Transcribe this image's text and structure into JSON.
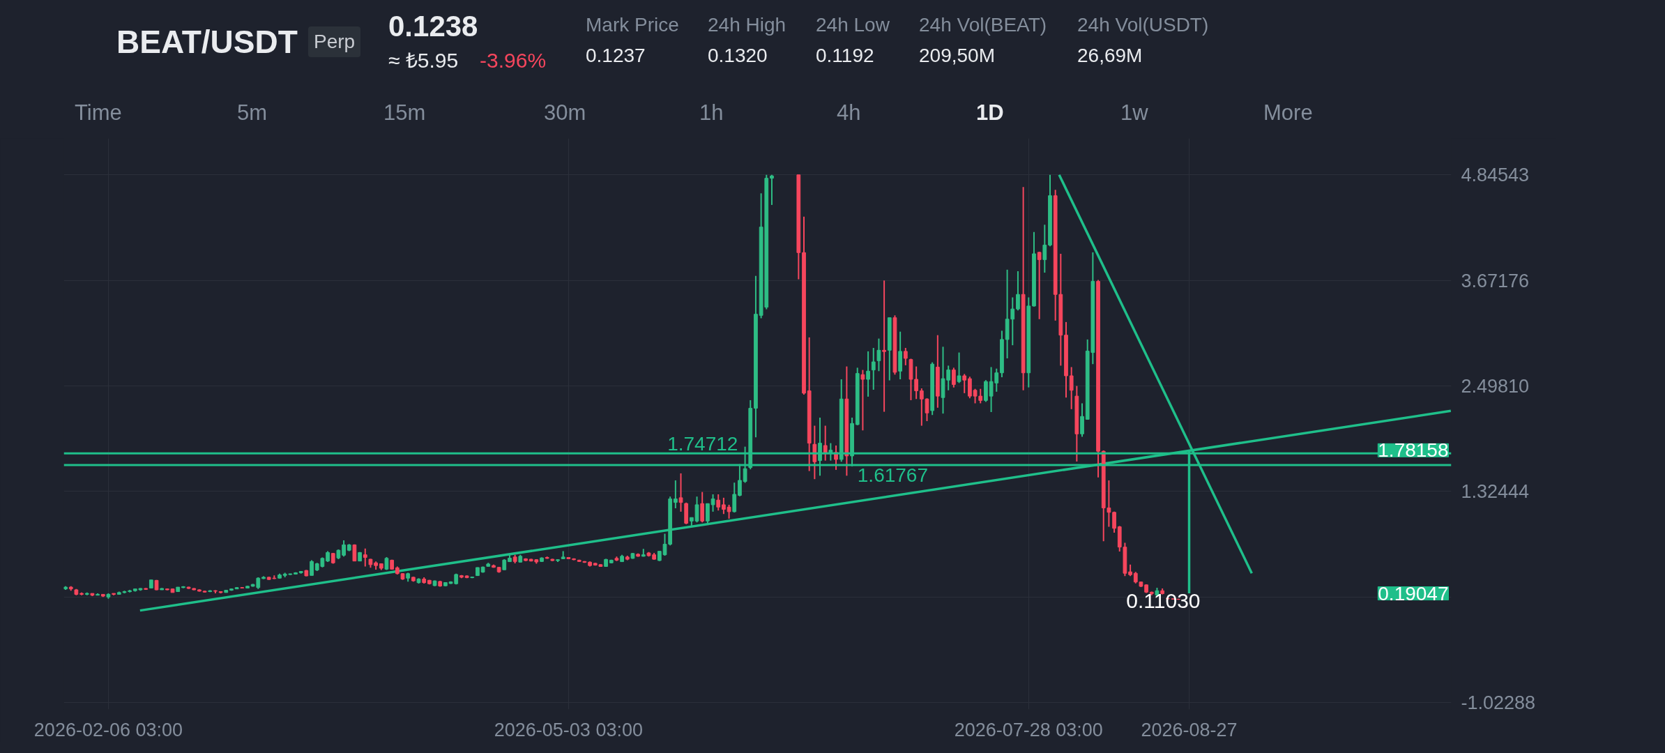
{
  "chart_data": {
    "type": "candlestick",
    "title": "BEAT/USDT",
    "subtitle": "Perp",
    "annotations": [
      "0.1238",
      "≈ ₺5.95",
      "-3.96%",
      "Mark Price",
      "0.1237",
      "24h High",
      "0.1320",
      "24h Low",
      "0.1192",
      "24h Vol(BEAT)",
      "209,50M",
      "24h Vol(USDT)",
      "26,69M",
      "Time",
      "5m",
      "15m",
      "30m",
      "1h",
      "4h",
      "1D",
      "1w",
      "More",
      "0.11030",
      "1.78158",
      "0.19047"
    ],
    "x": [
      "2026-01-29",
      "2026-01-30",
      "2026-01-31",
      "2026-02-01",
      "2026-02-02",
      "2026-02-03",
      "2026-02-04",
      "2026-02-05",
      "2026-02-06",
      "2026-02-07",
      "2026-02-08",
      "2026-02-09",
      "2026-02-10",
      "2026-02-11",
      "2026-02-12",
      "2026-02-13",
      "2026-02-14",
      "2026-02-15",
      "2026-02-16",
      "2026-02-17",
      "2026-02-18",
      "2026-02-19",
      "2026-02-20",
      "2026-02-21",
      "2026-02-22",
      "2026-02-23",
      "2026-02-24",
      "2026-02-25",
      "2026-02-26",
      "2026-02-27",
      "2026-02-28",
      "2026-03-01",
      "2026-03-02",
      "2026-03-03",
      "2026-03-04",
      "2026-03-05",
      "2026-03-06",
      "2026-03-07",
      "2026-03-08",
      "2026-03-09",
      "2026-03-10",
      "2026-03-11",
      "2026-03-12",
      "2026-03-13",
      "2026-03-14",
      "2026-03-15",
      "2026-03-16",
      "2026-03-17",
      "2026-03-18",
      "2026-03-19",
      "2026-03-20",
      "2026-03-21",
      "2026-03-22",
      "2026-03-23",
      "2026-03-24",
      "2026-03-25",
      "2026-03-26",
      "2026-03-27",
      "2026-03-28",
      "2026-03-29",
      "2026-03-30",
      "2026-03-31",
      "2026-04-01",
      "2026-04-02",
      "2026-04-03",
      "2026-04-04",
      "2026-04-05",
      "2026-04-06",
      "2026-04-07",
      "2026-04-08",
      "2026-04-09",
      "2026-04-10",
      "2026-04-11",
      "2026-04-12",
      "2026-04-13",
      "2026-04-14",
      "2026-04-15",
      "2026-04-16",
      "2026-04-17",
      "2026-04-18",
      "2026-04-19",
      "2026-04-20",
      "2026-04-21",
      "2026-04-22",
      "2026-04-23",
      "2026-04-24",
      "2026-04-25",
      "2026-04-26",
      "2026-04-27",
      "2026-04-28",
      "2026-04-29",
      "2026-04-30",
      "2026-05-01",
      "2026-05-02",
      "2026-05-03",
      "2026-05-04",
      "2026-05-05",
      "2026-05-06",
      "2026-05-07",
      "2026-05-08",
      "2026-05-09",
      "2026-05-10",
      "2026-05-11",
      "2026-05-12",
      "2026-05-13",
      "2026-05-14",
      "2026-05-15",
      "2026-05-16",
      "2026-05-17",
      "2026-05-18",
      "2026-05-19",
      "2026-05-20",
      "2026-05-21",
      "2026-05-22",
      "2026-05-23",
      "2026-05-24",
      "2026-05-25",
      "2026-05-26",
      "2026-05-27",
      "2026-05-28",
      "2026-05-29",
      "2026-05-30",
      "2026-05-31",
      "2026-06-01",
      "2026-06-02",
      "2026-06-03",
      "2026-06-04",
      "2026-06-05",
      "2026-06-06",
      "2026-06-07",
      "2026-06-08",
      "2026-06-09",
      "2026-06-10",
      "2026-06-15",
      "2026-06-16",
      "2026-06-17",
      "2026-06-18",
      "2026-06-19",
      "2026-06-20",
      "2026-06-21",
      "2026-06-22",
      "2026-06-23",
      "2026-06-24",
      "2026-06-25",
      "2026-06-26",
      "2026-06-27",
      "2026-06-28",
      "2026-06-29",
      "2026-06-30",
      "2026-07-01",
      "2026-07-02",
      "2026-07-03",
      "2026-07-04",
      "2026-07-05",
      "2026-07-06",
      "2026-07-07",
      "2026-07-08",
      "2026-07-09",
      "2026-07-10",
      "2026-07-11",
      "2026-07-12",
      "2026-07-13",
      "2026-07-14",
      "2026-07-15",
      "2026-07-16",
      "2026-07-17",
      "2026-07-18",
      "2026-07-19",
      "2026-07-20",
      "2026-07-21",
      "2026-07-22",
      "2026-07-23",
      "2026-07-24",
      "2026-07-25",
      "2026-07-26",
      "2026-07-27",
      "2026-07-28",
      "2026-07-29",
      "2026-07-30",
      "2026-07-31",
      "2026-08-01",
      "2026-08-02",
      "2026-08-03",
      "2026-08-04",
      "2026-08-05",
      "2026-08-06",
      "2026-08-07",
      "2026-08-08",
      "2026-08-09",
      "2026-08-10",
      "2026-08-11",
      "2026-08-12",
      "2026-08-13",
      "2026-08-14",
      "2026-08-15",
      "2026-08-16",
      "2026-08-17",
      "2026-08-18",
      "2026-08-19",
      "2026-08-20",
      "2026-08-21",
      "2026-08-22",
      "2026-08-23",
      "2026-08-24",
      "2026-08-25"
    ],
    "ohlc": [
      [
        0.24,
        0.27,
        0.23,
        0.26
      ],
      [
        0.26,
        0.27,
        0.22,
        0.24
      ],
      [
        0.23,
        0.24,
        0.17,
        0.18
      ],
      [
        0.19,
        0.2,
        0.17,
        0.18
      ],
      [
        0.18,
        0.2,
        0.17,
        0.19
      ],
      [
        0.19,
        0.19,
        0.16,
        0.17
      ],
      [
        0.17,
        0.19,
        0.17,
        0.18
      ],
      [
        0.18,
        0.18,
        0.15,
        0.16
      ],
      [
        0.15,
        0.19,
        0.13,
        0.18
      ],
      [
        0.19,
        0.19,
        0.17,
        0.18
      ],
      [
        0.18,
        0.21,
        0.18,
        0.2
      ],
      [
        0.2,
        0.22,
        0.19,
        0.21
      ],
      [
        0.21,
        0.23,
        0.2,
        0.22
      ],
      [
        0.22,
        0.24,
        0.21,
        0.24
      ],
      [
        0.23,
        0.25,
        0.22,
        0.245
      ],
      [
        0.245,
        0.25,
        0.23,
        0.235
      ],
      [
        0.25,
        0.34,
        0.25,
        0.34
      ],
      [
        0.335,
        0.34,
        0.225,
        0.23
      ],
      [
        0.23,
        0.25,
        0.23,
        0.245
      ],
      [
        0.24,
        0.245,
        0.225,
        0.23
      ],
      [
        0.24,
        0.245,
        0.2,
        0.2
      ],
      [
        0.21,
        0.26,
        0.21,
        0.26
      ],
      [
        0.255,
        0.27,
        0.25,
        0.265
      ],
      [
        0.26,
        0.265,
        0.24,
        0.245
      ],
      [
        0.245,
        0.25,
        0.225,
        0.23
      ],
      [
        0.23,
        0.235,
        0.21,
        0.215
      ],
      [
        0.215,
        0.22,
        0.2,
        0.205
      ],
      [
        0.21,
        0.225,
        0.205,
        0.22
      ],
      [
        0.22,
        0.225,
        0.19,
        0.215
      ],
      [
        0.21,
        0.215,
        0.19,
        0.2
      ],
      [
        0.2,
        0.23,
        0.2,
        0.225
      ],
      [
        0.225,
        0.245,
        0.22,
        0.24
      ],
      [
        0.24,
        0.26,
        0.24,
        0.255
      ],
      [
        0.255,
        0.26,
        0.245,
        0.25
      ],
      [
        0.25,
        0.275,
        0.25,
        0.27
      ],
      [
        0.27,
        0.295,
        0.265,
        0.29
      ],
      [
        0.255,
        0.37,
        0.24,
        0.36
      ],
      [
        0.355,
        0.38,
        0.35,
        0.37
      ],
      [
        0.37,
        0.375,
        0.34,
        0.345
      ],
      [
        0.36,
        0.39,
        0.35,
        0.355
      ],
      [
        0.36,
        0.41,
        0.355,
        0.395
      ],
      [
        0.39,
        0.42,
        0.37,
        0.405
      ],
      [
        0.4,
        0.41,
        0.395,
        0.408
      ],
      [
        0.405,
        0.425,
        0.4,
        0.42
      ],
      [
        0.42,
        0.44,
        0.41,
        0.435
      ],
      [
        0.445,
        0.45,
        0.38,
        0.385
      ],
      [
        0.39,
        0.56,
        0.39,
        0.545
      ],
      [
        0.45,
        0.53,
        0.44,
        0.52
      ],
      [
        0.49,
        0.59,
        0.48,
        0.58
      ],
      [
        0.55,
        0.66,
        0.54,
        0.645
      ],
      [
        0.635,
        0.64,
        0.52,
        0.53
      ],
      [
        0.585,
        0.68,
        0.57,
        0.67
      ],
      [
        0.615,
        0.78,
        0.6,
        0.73
      ],
      [
        0.67,
        0.74,
        0.66,
        0.73
      ],
      [
        0.73,
        0.735,
        0.55,
        0.55
      ],
      [
        0.55,
        0.65,
        0.55,
        0.645
      ],
      [
        0.62,
        0.69,
        0.49,
        0.59
      ],
      [
        0.57,
        0.575,
        0.475,
        0.51
      ],
      [
        0.53,
        0.545,
        0.455,
        0.5
      ],
      [
        0.52,
        0.52,
        0.45,
        0.47
      ],
      [
        0.46,
        0.595,
        0.45,
        0.58
      ],
      [
        0.56,
        0.565,
        0.455,
        0.46
      ],
      [
        0.475,
        0.49,
        0.4,
        0.41
      ],
      [
        0.41,
        0.415,
        0.34,
        0.35
      ],
      [
        0.36,
        0.42,
        0.32,
        0.41
      ],
      [
        0.37,
        0.375,
        0.32,
        0.33
      ],
      [
        0.31,
        0.36,
        0.3,
        0.35
      ],
      [
        0.35,
        0.37,
        0.3,
        0.31
      ],
      [
        0.336,
        0.34,
        0.29,
        0.298
      ],
      [
        0.277,
        0.335,
        0.27,
        0.329
      ],
      [
        0.323,
        0.33,
        0.265,
        0.272
      ],
      [
        0.275,
        0.315,
        0.27,
        0.311
      ],
      [
        0.3,
        0.325,
        0.295,
        0.318
      ],
      [
        0.298,
        0.41,
        0.29,
        0.401
      ],
      [
        0.388,
        0.395,
        0.36,
        0.37
      ],
      [
        0.385,
        0.39,
        0.36,
        0.365
      ],
      [
        0.365,
        0.375,
        0.36,
        0.372
      ],
      [
        0.388,
        0.48,
        0.385,
        0.478
      ],
      [
        0.427,
        0.49,
        0.42,
        0.483
      ],
      [
        0.491,
        0.53,
        0.49,
        0.517
      ],
      [
        0.5,
        0.51,
        0.475,
        0.48
      ],
      [
        0.48,
        0.485,
        0.42,
        0.43
      ],
      [
        0.453,
        0.57,
        0.45,
        0.561
      ],
      [
        0.543,
        0.62,
        0.54,
        0.582
      ],
      [
        0.595,
        0.62,
        0.525,
        0.545
      ],
      [
        0.538,
        0.62,
        0.535,
        0.603
      ],
      [
        0.575,
        0.58,
        0.55,
        0.555
      ],
      [
        0.57,
        0.575,
        0.545,
        0.55
      ],
      [
        0.565,
        0.57,
        0.52,
        0.54
      ],
      [
        0.545,
        0.59,
        0.54,
        0.585
      ],
      [
        0.59,
        0.6,
        0.575,
        0.58
      ],
      [
        0.57,
        0.575,
        0.55,
        0.555
      ],
      [
        0.555,
        0.57,
        0.54,
        0.565
      ],
      [
        0.575,
        0.66,
        0.57,
        0.595
      ],
      [
        0.59,
        0.595,
        0.57,
        0.575
      ],
      [
        0.575,
        0.58,
        0.56,
        0.565
      ],
      [
        0.56,
        0.565,
        0.54,
        0.545
      ],
      [
        0.545,
        0.55,
        0.53,
        0.535
      ],
      [
        0.538,
        0.545,
        0.49,
        0.5
      ],
      [
        0.525,
        0.53,
        0.5,
        0.505
      ],
      [
        0.51,
        0.515,
        0.485,
        0.49
      ],
      [
        0.49,
        0.575,
        0.485,
        0.568
      ],
      [
        0.53,
        0.565,
        0.525,
        0.56
      ],
      [
        0.58,
        0.6,
        0.55,
        0.56
      ],
      [
        0.543,
        0.62,
        0.54,
        0.603
      ],
      [
        0.595,
        0.61,
        0.56,
        0.57
      ],
      [
        0.58,
        0.64,
        0.575,
        0.634
      ],
      [
        0.626,
        0.635,
        0.598,
        0.603
      ],
      [
        0.603,
        0.685,
        0.6,
        0.62
      ],
      [
        0.64,
        0.65,
        0.6,
        0.61
      ],
      [
        0.62,
        0.64,
        0.565,
        0.57
      ],
      [
        0.556,
        0.66,
        0.55,
        0.659
      ],
      [
        0.62,
        0.853,
        0.61,
        0.737
      ],
      [
        0.737,
        1.267,
        0.724,
        1.241
      ],
      [
        1.202,
        1.447,
        1.137,
        1.241
      ],
      [
        1.254,
        1.525,
        1.099,
        1.202
      ],
      [
        1.19,
        1.2,
        0.96,
        0.97
      ],
      [
        0.995,
        1.034,
        0.944,
        1.034
      ],
      [
        0.995,
        1.267,
        0.98,
        1.176
      ],
      [
        1.189,
        1.318,
        0.98,
        0.995
      ],
      [
        0.995,
        1.19,
        0.97,
        1.189
      ],
      [
        1.176,
        1.292,
        1.099,
        1.241
      ],
      [
        1.228,
        1.292,
        1.112,
        1.15
      ],
      [
        1.176,
        1.254,
        1.073,
        1.125
      ],
      [
        1.15,
        1.176,
        1.021,
        1.099
      ],
      [
        1.099,
        1.422,
        1.09,
        1.292
      ],
      [
        1.28,
        1.628,
        1.27,
        1.447
      ],
      [
        1.435,
        1.822,
        1.42,
        1.577
      ],
      [
        1.59,
        2.339,
        1.57,
        2.249
      ],
      [
        2.249,
        3.721,
        1.926,
        3.295
      ],
      [
        3.282,
        4.639,
        3.25,
        4.264
      ],
      [
        3.373,
        4.845,
        3.35,
        4.807
      ],
      [
        4.807,
        4.845,
        4.51,
        4.833
      ],
      [
        4.845,
        4.845,
        3.683,
        3.98
      ],
      [
        3.98,
        4.38,
        2.4,
        2.417
      ],
      [
        2.443,
        3.037,
        1.551,
        1.861
      ],
      [
        1.848,
        2.055,
        1.461,
        1.654
      ],
      [
        1.667,
        2.145,
        1.499,
        1.861
      ],
      [
        1.835,
        2.055,
        1.667,
        1.745
      ],
      [
        1.745,
        1.861,
        1.667,
        1.783
      ],
      [
        1.758,
        1.835,
        1.564,
        1.68
      ],
      [
        1.68,
        2.571,
        1.654,
        2.352
      ],
      [
        2.352,
        2.714,
        1.499,
        1.719
      ],
      [
        1.719,
        2.145,
        1.603,
        2.08
      ],
      [
        2.068,
        2.7,
        2.06,
        2.636
      ],
      [
        2.623,
        2.675,
        2.003,
        2.571
      ],
      [
        2.571,
        2.882,
        2.378,
        2.662
      ],
      [
        2.675,
        2.92,
        2.455,
        2.765
      ],
      [
        2.778,
        3.024,
        2.662,
        2.894
      ],
      [
        2.894,
        3.67,
        2.21,
        2.88
      ],
      [
        2.894,
        3.256,
        2.559,
        3.256
      ],
      [
        3.256,
        3.282,
        2.623,
        2.649
      ],
      [
        2.662,
        3.101,
        2.571,
        2.882
      ],
      [
        2.882,
        2.92,
        2.727,
        2.804
      ],
      [
        2.791,
        2.8,
        2.339,
        2.571
      ],
      [
        2.571,
        2.714,
        2.352,
        2.443
      ],
      [
        2.443,
        2.47,
        2.055,
        2.352
      ],
      [
        2.352,
        2.36,
        2.106,
        2.197
      ],
      [
        2.223,
        2.76,
        2.174,
        2.74
      ],
      [
        2.707,
        3.062,
        2.255,
        2.384
      ],
      [
        2.368,
        2.933,
        2.19,
        2.578
      ],
      [
        2.562,
        2.723,
        2.449,
        2.675
      ],
      [
        2.675,
        2.7,
        2.48,
        2.513
      ],
      [
        2.546,
        2.869,
        2.53,
        2.61
      ],
      [
        2.61,
        2.63,
        2.417,
        2.562
      ],
      [
        2.578,
        2.6,
        2.36,
        2.384
      ],
      [
        2.449,
        2.465,
        2.304,
        2.384
      ],
      [
        2.384,
        2.465,
        2.304,
        2.336
      ],
      [
        2.336,
        2.562,
        2.32,
        2.546
      ],
      [
        2.384,
        2.707,
        2.207,
        2.546
      ],
      [
        2.53,
        2.69,
        2.433,
        2.643
      ],
      [
        2.643,
        3.111,
        2.594,
        3.014
      ],
      [
        3.014,
        3.79,
        2.804,
        3.24
      ],
      [
        3.24,
        3.482,
        2.95,
        3.353
      ],
      [
        3.353,
        3.773,
        3.337,
        3.515
      ],
      [
        3.515,
        4.71,
        2.449,
        2.643
      ],
      [
        2.643,
        3.482,
        2.481,
        3.386
      ],
      [
        3.386,
        4.209,
        3.38,
        3.967
      ],
      [
        3.983,
        3.99,
        3.24,
        3.902
      ],
      [
        3.902,
        4.29,
        3.757,
        4.064
      ],
      [
        4.064,
        4.845,
        4.05,
        4.613
      ],
      [
        4.613,
        4.678,
        3.224,
        3.515
      ],
      [
        3.515,
        3.967,
        2.723,
        3.062
      ],
      [
        3.062,
        3.208,
        2.368,
        2.61
      ],
      [
        2.61,
        2.707,
        2.239,
        2.449
      ],
      [
        2.384,
        2.497,
        1.657,
        1.964
      ],
      [
        1.964,
        2.304,
        1.932,
        2.158
      ],
      [
        2.126,
        3.014,
        2.126,
        2.885
      ],
      [
        2.869,
        3.983,
        2.74,
        3.66
      ],
      [
        3.66,
        3.676,
        1.48,
        1.771
      ],
      [
        1.771,
        1.78,
        0.77,
        1.141
      ],
      [
        1.141,
        1.447,
        0.931,
        1.092
      ],
      [
        1.092,
        1.1,
        0.866,
        0.914
      ],
      [
        0.931,
        0.94,
        0.656,
        0.705
      ],
      [
        0.705,
        0.753,
        0.382,
        0.414
      ],
      [
        0.43,
        0.511,
        0.382,
        0.398
      ],
      [
        0.414,
        0.43,
        0.301,
        0.317
      ],
      [
        0.317,
        0.32,
        0.26,
        0.269
      ],
      [
        0.285,
        0.29,
        0.195,
        0.204
      ],
      [
        0.204,
        0.21,
        0.17,
        0.188
      ],
      [
        0.172,
        0.253,
        0.165,
        0.22
      ],
      [
        0.22,
        0.246,
        0.18,
        0.188
      ],
      [
        0.135,
        0.14,
        0.125,
        0.13
      ],
      [
        0.13,
        0.133,
        0.122,
        0.126
      ],
      [
        0.126,
        0.13,
        0.12,
        0.124
      ]
    ],
    "colors": [
      "#2ebd85",
      "#f6465d",
      "#f6465d",
      "#f6465d",
      "#2ebd85",
      "#f6465d",
      "#2ebd85",
      "#f6465d",
      "#2ebd85",
      "#f6465d",
      "#2ebd85",
      "#2ebd85",
      "#2ebd85",
      "#2ebd85",
      "#2ebd85",
      "#f6465d",
      "#2ebd85",
      "#f6465d",
      "#2ebd85",
      "#f6465d",
      "#f6465d",
      "#2ebd85",
      "#2ebd85",
      "#f6465d",
      "#f6465d",
      "#f6465d",
      "#f6465d",
      "#2ebd85",
      "#f6465d",
      "#f6465d",
      "#2ebd85",
      "#2ebd85",
      "#2ebd85",
      "#f6465d",
      "#2ebd85",
      "#2ebd85",
      "#2ebd85",
      "#2ebd85",
      "#f6465d",
      "#f6465d",
      "#2ebd85",
      "#2ebd85",
      "#2ebd85",
      "#2ebd85",
      "#2ebd85",
      "#f6465d",
      "#2ebd85",
      "#2ebd85",
      "#2ebd85",
      "#2ebd85",
      "#f6465d",
      "#2ebd85",
      "#2ebd85",
      "#2ebd85",
      "#f6465d",
      "#2ebd85",
      "#f6465d",
      "#f6465d",
      "#f6465d",
      "#f6465d",
      "#2ebd85",
      "#f6465d",
      "#f6465d",
      "#f6465d",
      "#2ebd85",
      "#f6465d",
      "#2ebd85",
      "#f6465d",
      "#f6465d",
      "#2ebd85",
      "#f6465d",
      "#2ebd85",
      "#2ebd85",
      "#2ebd85",
      "#f6465d",
      "#f6465d",
      "#2ebd85",
      "#2ebd85",
      "#2ebd85",
      "#2ebd85",
      "#f6465d",
      "#f6465d",
      "#2ebd85",
      "#2ebd85",
      "#f6465d",
      "#2ebd85",
      "#f6465d",
      "#f6465d",
      "#f6465d",
      "#2ebd85",
      "#f6465d",
      "#f6465d",
      "#2ebd85",
      "#2ebd85",
      "#f6465d",
      "#f6465d",
      "#f6465d",
      "#f6465d",
      "#f6465d",
      "#f6465d",
      "#f6465d",
      "#2ebd85",
      "#2ebd85",
      "#f6465d",
      "#2ebd85",
      "#f6465d",
      "#2ebd85",
      "#f6465d",
      "#2ebd85",
      "#f6465d",
      "#f6465d",
      "#2ebd85",
      "#2ebd85",
      "#2ebd85",
      "#2ebd85",
      "#f6465d",
      "#f6465d",
      "#2ebd85",
      "#2ebd85",
      "#f6465d",
      "#2ebd85",
      "#2ebd85",
      "#f6465d",
      "#f6465d",
      "#f6465d",
      "#2ebd85",
      "#2ebd85",
      "#2ebd85",
      "#2ebd85",
      "#2ebd85",
      "#2ebd85",
      "#2ebd85",
      "#2ebd85",
      "#f6465d",
      "#f6465d",
      "#f6465d",
      "#f6465d",
      "#2ebd85",
      "#f6465d",
      "#2ebd85",
      "#f6465d",
      "#2ebd85",
      "#f6465d",
      "#2ebd85",
      "#2ebd85",
      "#f6465d",
      "#2ebd85",
      "#2ebd85",
      "#2ebd85",
      "#f6465d",
      "#2ebd85",
      "#f6465d",
      "#2ebd85",
      "#f6465d",
      "#f6465d",
      "#f6465d",
      "#f6465d",
      "#f6465d",
      "#2ebd85",
      "#f6465d",
      "#2ebd85",
      "#2ebd85",
      "#f6465d",
      "#2ebd85",
      "#f6465d",
      "#f6465d",
      "#f6465d",
      "#f6465d",
      "#2ebd85",
      "#2ebd85",
      "#2ebd85",
      "#2ebd85",
      "#2ebd85",
      "#2ebd85",
      "#2ebd85",
      "#f6465d",
      "#2ebd85",
      "#2ebd85",
      "#f6465d",
      "#2ebd85",
      "#2ebd85",
      "#f6465d",
      "#f6465d",
      "#f6465d",
      "#f6465d",
      "#f6465d",
      "#2ebd85",
      "#2ebd85",
      "#2ebd85",
      "#f6465d",
      "#f6465d",
      "#f6465d",
      "#f6465d",
      "#f6465d",
      "#f6465d",
      "#f6465d",
      "#f6465d",
      "#f6465d",
      "#f6465d",
      "#f6465d",
      "#2ebd85",
      "#f6465d",
      "#f6465d",
      "#f6465d",
      "#f6465d"
    ],
    "series": [
      {
        "type": "line",
        "color": "#1fbf8a",
        "x": [
          "2026-02-11T22:00",
          "2026-10-14T22:00"
        ],
        "values": [
          0.0,
          2.22
        ]
      },
      {
        "type": "line",
        "color": "#1fbf8a",
        "x": [
          "2026-08-02T17:00",
          "2026-09-07T17:00"
        ],
        "values": [
          4.845,
          0.414
        ]
      },
      {
        "type": "line",
        "color": "#1fbf8a",
        "x": [
          "2026-08-27",
          "2026-08-27"
        ],
        "values": [
          1.78158,
          0.19047
        ]
      }
    ],
    "ref_lines": [
      {
        "axis": "y",
        "value": 1.74712,
        "label": "1.74712",
        "color": "#1fbf8a"
      },
      {
        "axis": "y",
        "value": 1.61767,
        "label": "1.61767",
        "color": "#1fbf8a"
      }
    ],
    "xlim": [
      "2026-01-28T16:00",
      "2026-10-15T00:00"
    ],
    "xticks": [
      {
        "value": "2026-02-06",
        "label": "2026-02-06 03:00"
      },
      {
        "value": "2026-05-03",
        "label": "2026-05-03 03:00"
      },
      {
        "value": "2026-07-28",
        "label": "2026-07-28 03:00"
      },
      {
        "value": "2026-08-27",
        "label": "2026-08-27"
      }
    ],
    "ylim": [
      -1.1,
      5.25
    ],
    "yticks": [
      {
        "value": 4.84543,
        "label": "4.84543"
      },
      {
        "value": 3.67176,
        "label": "3.67176"
      },
      {
        "value": 2.4981,
        "label": "2.49810"
      },
      {
        "value": 1.32444,
        "label": "1.32444"
      },
      {
        "value": 0.15078,
        "label": null
      },
      {
        "value": -1.02288,
        "label": "-1.02288"
      }
    ],
    "grid": true
  }
}
